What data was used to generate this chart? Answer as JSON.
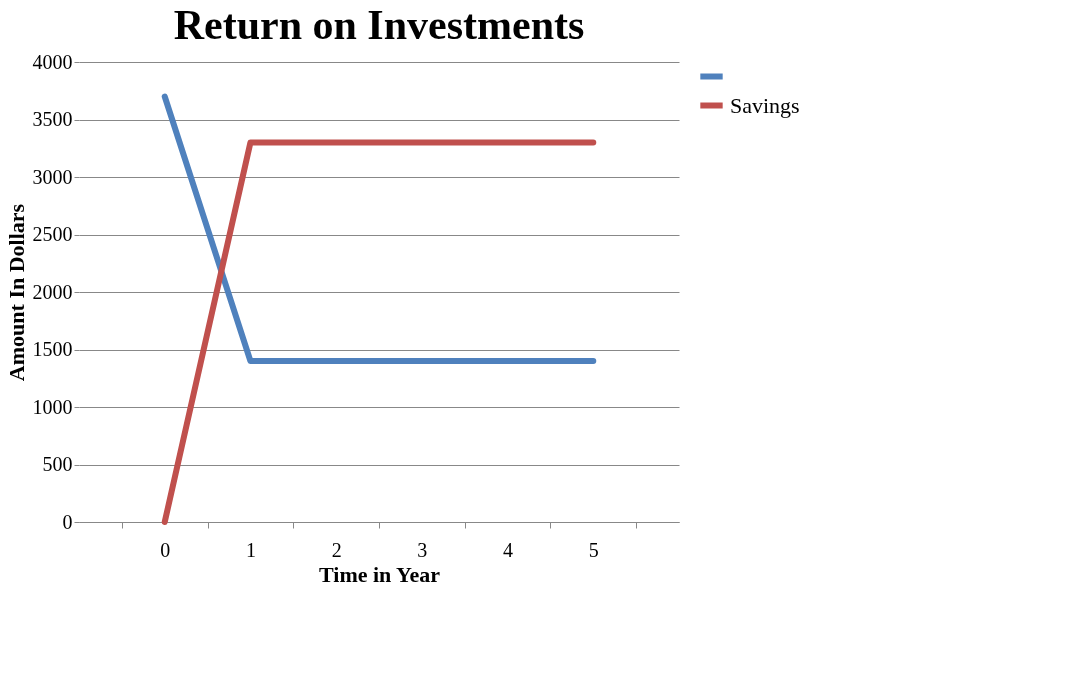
{
  "chart_data": {
    "type": "line",
    "title": "Return on Investments",
    "xlabel": "Time in Year",
    "ylabel": "Amount In Dollars",
    "categories": [
      "0",
      "1",
      "2",
      "3",
      "4",
      "5"
    ],
    "series": [
      {
        "color": "#4f81bd",
        "values": [
          3700,
          1400,
          1400,
          1400,
          1400,
          1400
        ]
      },
      {
        "name": "Savings",
        "color": "#c0504d",
        "values": [
          0,
          3300,
          3300,
          3300,
          3300,
          3300
        ]
      }
    ],
    "ylim": [
      0,
      4000
    ],
    "yticks": [
      0,
      500,
      1000,
      1500,
      2000,
      2500,
      3000,
      3500,
      4000
    ],
    "grid": "y",
    "legend": "right",
    "marker": "none",
    "line_style": "solid"
  }
}
